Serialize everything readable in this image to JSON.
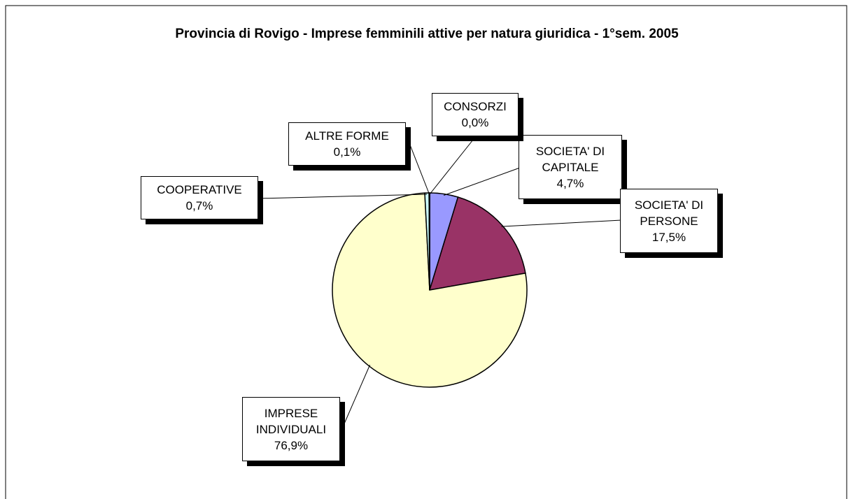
{
  "chart_data": {
    "type": "pie",
    "title": "Provincia di Rovigo - Imprese femminili attive per natura giuridica - 1°sem. 2005",
    "categories": [
      "SOCIETA' DI CAPITALE",
      "SOCIETA' DI PERSONE",
      "IMPRESE INDIVIDUALI",
      "COOPERATIVE",
      "ALTRE FORME",
      "CONSORZI"
    ],
    "values": [
      4.7,
      17.5,
      76.9,
      0.7,
      0.1,
      0.0
    ],
    "value_labels": [
      "4,7%",
      "17,5%",
      "76,9%",
      "0,7%",
      "0,1%",
      "0,0%"
    ],
    "colors": [
      "#9999ff",
      "#993366",
      "#ffffcc",
      "#ccffff",
      "#ffffff",
      "#660066"
    ]
  }
}
